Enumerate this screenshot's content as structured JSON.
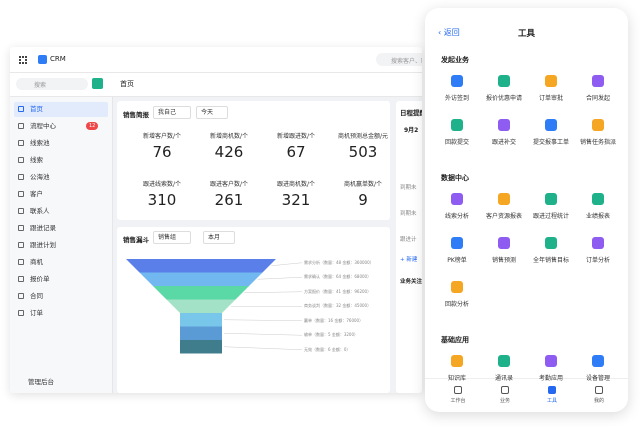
{
  "crm": {
    "logo": "CRM",
    "search": "搜索",
    "global_search": "搜索客户、联系",
    "breadcrumb": "首页",
    "menu": [
      {
        "label": "首页"
      },
      {
        "label": "流程中心",
        "badge": 12
      },
      {
        "label": "线索池"
      },
      {
        "label": "线索"
      },
      {
        "label": "公海池"
      },
      {
        "label": "客户"
      },
      {
        "label": "联系人"
      },
      {
        "label": "跟进记录"
      },
      {
        "label": "跟进计划"
      },
      {
        "label": "商机"
      },
      {
        "label": "报价单"
      },
      {
        "label": "合同"
      },
      {
        "label": "订单"
      }
    ],
    "admin": "管理后台",
    "brief": {
      "title": "销售简报",
      "filters": [
        "我自己",
        "今天"
      ],
      "stats": [
        {
          "label": "新增客户数/个",
          "value": 76
        },
        {
          "label": "新增商机数/个",
          "value": 426
        },
        {
          "label": "新增跟进数/个",
          "value": 67
        },
        {
          "label": "商机预测总金额/元",
          "value": 503
        },
        {
          "label": "跟进线索数/个",
          "value": 310
        },
        {
          "label": "跟进客户数/个",
          "value": 261
        },
        {
          "label": "跟进商机数/个",
          "value": 321
        },
        {
          "label": "商机赢单数/个",
          "value": 9
        }
      ]
    },
    "funnel": {
      "title": "销售漏斗",
      "filters": [
        "销售组",
        "本月"
      ],
      "stages": [
        "需求分析（数量：48 金额：360000）",
        "需求确认（数量：64 金额：68000）",
        "方案报价（数量：41 金额：96200）",
        "商务谈判（数量：32 金额：45000）",
        "赢单（数量：16 金额：76000）",
        "输单（数量：5 金额：3200）",
        "无效（数量：6 金额：0）"
      ]
    },
    "schedule": {
      "title": "日程提醒",
      "date": "9月2",
      "items": [
        "到期未",
        "到期未",
        "跟进计"
      ],
      "new": "+ 新建",
      "focus": "业务关注"
    }
  },
  "mobile": {
    "back": "返回",
    "title": "工具",
    "sections": [
      {
        "title": "发起业务",
        "items": [
          "外访签到",
          "报价优惠申请",
          "订单审批",
          "合同发起",
          "回款提交",
          "跟进补交",
          "提交报事工单",
          "销售任务指派"
        ]
      },
      {
        "title": "数据中心",
        "items": [
          "线索分析",
          "客户资源报表",
          "跟进过程统计",
          "业绩报表",
          "PK榜单",
          "销售预测",
          "全年销售目标",
          "订单分析",
          "回款分析"
        ]
      },
      {
        "title": "基础应用",
        "items": [
          "知识库",
          "通讯录",
          "考勤应用",
          "设备管理"
        ]
      }
    ],
    "tabs": [
      "工作台",
      "业务",
      "工具",
      "我的"
    ]
  }
}
